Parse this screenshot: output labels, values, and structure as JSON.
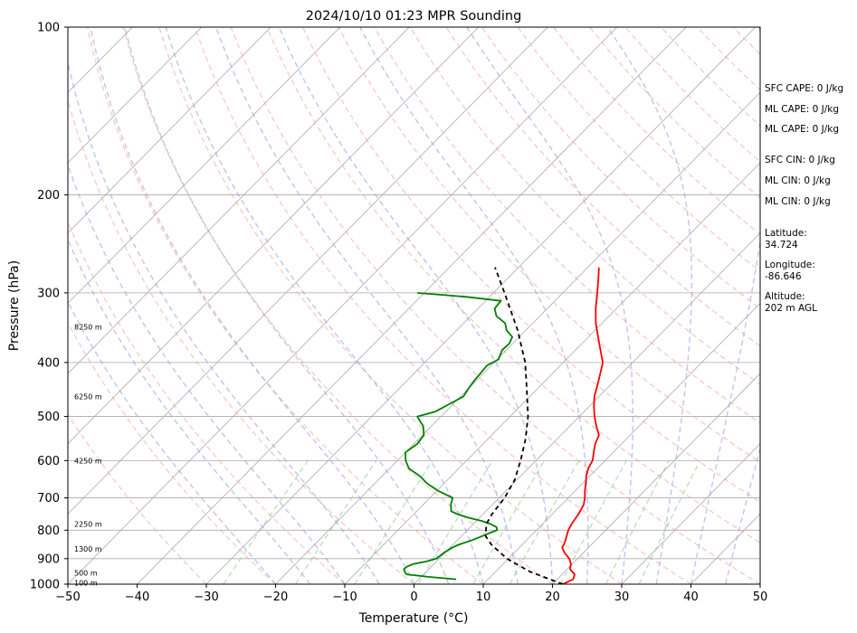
{
  "chart_data": {
    "type": "line",
    "title": "2024/10/10 01:23 MPR Sounding",
    "xlabel": "Temperature (°C)",
    "ylabel": "Pressure (hPa)",
    "xlim": [
      -50,
      50
    ],
    "ylim": [
      1000,
      100
    ],
    "y_scale": "log",
    "skew": "skew-T log-P",
    "grid": true,
    "x_ticks": [
      -50,
      -40,
      -30,
      -20,
      -10,
      0,
      10,
      20,
      30,
      40,
      50
    ],
    "x_tick_labels": [
      "−50",
      "−40",
      "−30",
      "−20",
      "−10",
      "0",
      "10",
      "20",
      "30",
      "40",
      "50"
    ],
    "y_ticks": [
      1000,
      900,
      800,
      700,
      600,
      500,
      400,
      300,
      200,
      100
    ],
    "y_tick_labels": [
      "1000",
      "900",
      "800",
      "700",
      "600",
      "500",
      "400",
      "300",
      "200",
      "100"
    ],
    "height_labels": [
      {
        "text": "100 m",
        "pressure": 995
      },
      {
        "text": "500 m",
        "pressure": 955
      },
      {
        "text": "1300 m",
        "pressure": 865
      },
      {
        "text": "2250 m",
        "pressure": 780
      },
      {
        "text": "4250 m",
        "pressure": 600
      },
      {
        "text": "6250 m",
        "pressure": 460
      },
      {
        "text": "8250 m",
        "pressure": 345
      }
    ],
    "series": [
      {
        "key": "temperature",
        "color": "#ff0000",
        "points": [
          [
            1000,
            21.5
          ],
          [
            980,
            22.3
          ],
          [
            960,
            21.8
          ],
          [
            940,
            20.4
          ],
          [
            920,
            19.8
          ],
          [
            900,
            18.8
          ],
          [
            880,
            17.4
          ],
          [
            860,
            16.2
          ],
          [
            840,
            15.8
          ],
          [
            820,
            15.2
          ],
          [
            800,
            14.6
          ],
          [
            780,
            14.2
          ],
          [
            750,
            13.8
          ],
          [
            720,
            13.2
          ],
          [
            700,
            12.4
          ],
          [
            680,
            11.4
          ],
          [
            660,
            10.5
          ],
          [
            640,
            9.5
          ],
          [
            620,
            8.7
          ],
          [
            600,
            8.2
          ],
          [
            580,
            7.2
          ],
          [
            560,
            6.2
          ],
          [
            540,
            5.5
          ],
          [
            520,
            3.8
          ],
          [
            500,
            2.2
          ],
          [
            480,
            0.7
          ],
          [
            460,
            -0.7
          ],
          [
            440,
            -1.8
          ],
          [
            420,
            -3.0
          ],
          [
            400,
            -4.3
          ],
          [
            380,
            -6.4
          ],
          [
            360,
            -8.6
          ],
          [
            340,
            -10.9
          ],
          [
            320,
            -13.0
          ],
          [
            300,
            -15.0
          ],
          [
            280,
            -17.2
          ],
          [
            270,
            -18.4
          ]
        ]
      },
      {
        "key": "dewpoint",
        "color": "#008000",
        "points": [
          [
            980,
            5.4
          ],
          [
            970,
            1.0
          ],
          [
            960,
            -2.5
          ],
          [
            950,
            -3.1
          ],
          [
            940,
            -3.6
          ],
          [
            930,
            -3.5
          ],
          [
            920,
            -3.0
          ],
          [
            910,
            -1.4
          ],
          [
            900,
            -0.4
          ],
          [
            880,
            -0.2
          ],
          [
            860,
            0.3
          ],
          [
            850,
            0.8
          ],
          [
            835,
            2.0
          ],
          [
            820,
            3.0
          ],
          [
            810,
            3.6
          ],
          [
            800,
            4.3
          ],
          [
            790,
            3.8
          ],
          [
            780,
            2.5
          ],
          [
            770,
            0.8
          ],
          [
            760,
            -1.5
          ],
          [
            750,
            -3.5
          ],
          [
            740,
            -5.0
          ],
          [
            720,
            -6.0
          ],
          [
            700,
            -6.7
          ],
          [
            680,
            -9.8
          ],
          [
            660,
            -12.4
          ],
          [
            640,
            -14.5
          ],
          [
            620,
            -17.2
          ],
          [
            600,
            -18.8
          ],
          [
            580,
            -20.0
          ],
          [
            560,
            -19.5
          ],
          [
            540,
            -19.8
          ],
          [
            520,
            -21.2
          ],
          [
            500,
            -23.4
          ],
          [
            490,
            -21.5
          ],
          [
            470,
            -20.2
          ],
          [
            460,
            -19.6
          ],
          [
            445,
            -20.0
          ],
          [
            430,
            -20.3
          ],
          [
            420,
            -20.4
          ],
          [
            405,
            -20.6
          ],
          [
            395,
            -19.8
          ],
          [
            380,
            -20.6
          ],
          [
            370,
            -20.5
          ],
          [
            360,
            -21.0
          ],
          [
            350,
            -22.8
          ],
          [
            340,
            -24.0
          ],
          [
            330,
            -26.3
          ],
          [
            320,
            -27.6
          ],
          [
            310,
            -27.8
          ],
          [
            305,
            -33.3
          ],
          [
            300,
            -41.0
          ]
        ]
      },
      {
        "key": "parcel",
        "color": "#000000",
        "dashed": true,
        "points": [
          [
            1000,
            21.5
          ],
          [
            950,
            15.0
          ],
          [
            900,
            9.8
          ],
          [
            850,
            5.6
          ],
          [
            820,
            3.5
          ],
          [
            800,
            2.7
          ],
          [
            780,
            1.9
          ],
          [
            750,
            1.3
          ],
          [
            700,
            0.8
          ],
          [
            650,
            -0.3
          ],
          [
            600,
            -2.2
          ],
          [
            550,
            -4.5
          ],
          [
            500,
            -7.4
          ],
          [
            450,
            -11.2
          ],
          [
            400,
            -15.5
          ],
          [
            350,
            -21.2
          ],
          [
            300,
            -28.4
          ],
          [
            270,
            -33.4
          ]
        ]
      }
    ],
    "reference_lines": {
      "isotherms_color": "#aaaaaa",
      "dry_adiabats_color": "#ff9999",
      "moist_adiabats_color": "#9999ee",
      "mixing_ratio_color": "#88cc88"
    },
    "stats": [
      {
        "text": "SFC CAPE: 0 J/kg"
      },
      {
        "text": "ML CAPE: 0 J/kg"
      },
      {
        "text": "ML CAPE: 0 J/kg"
      },
      {
        "text": "SFC CIN: 0 J/kg"
      },
      {
        "text": "ML CIN: 0 J/kg"
      },
      {
        "text": "ML CIN: 0 J/kg"
      },
      {
        "text": "Latitude:\n34.724"
      },
      {
        "text": "Longitude:\n-86.646"
      },
      {
        "text": "Altitude:\n202 m AGL"
      }
    ]
  }
}
